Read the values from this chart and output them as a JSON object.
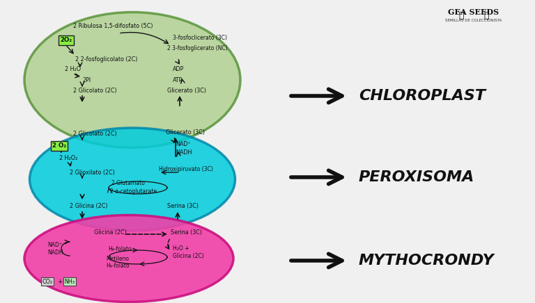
{
  "bg_color": "#f0f0f0",
  "chloroplast_color": "#a8cc85",
  "chloroplast_edge": "#4a8a28",
  "peroxisoma_color": "#00ccdd",
  "peroxisoma_edge": "#0088aa",
  "mitochondria_color": "#f040a8",
  "mitochondria_edge": "#cc1080",
  "o2_box_color": "#88ee44",
  "co2_box_color": "#d8d8d8",
  "nh3_box_color": "#b8e8b8",
  "label_chloroplast": "CHLOROPLAST",
  "label_peroxisoma": "PEROXISOMA",
  "label_mitochondria": "MYTHOCRONDY",
  "arrow_color": "#111111",
  "text_color": "#111111"
}
